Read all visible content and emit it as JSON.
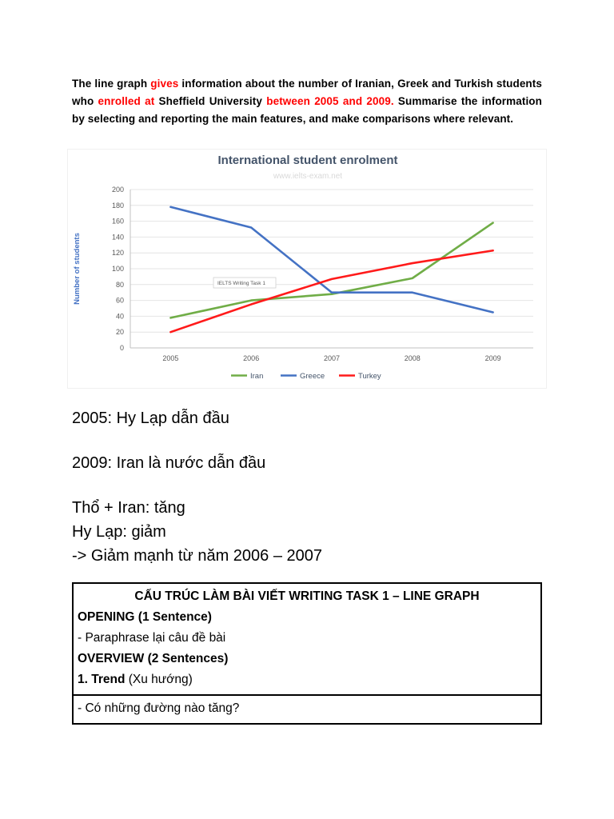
{
  "prompt": {
    "red_color": "#ff0000",
    "segments": [
      {
        "t": "The line graph ",
        "red": false
      },
      {
        "t": "gives",
        "red": true
      },
      {
        "t": " information about the number of Iranian, Greek and Turkish students who ",
        "red": false
      },
      {
        "t": "enrolled at",
        "red": true
      },
      {
        "t": " Sheffield University ",
        "red": false
      },
      {
        "t": "between 2005 and 2009.",
        "red": true
      },
      {
        "t": " Summarise the information by selecting and reporting the main features, and make comparisons where relevant.",
        "red": false
      }
    ]
  },
  "chart_data": {
    "type": "line",
    "title": "International student enrolment",
    "title_color": "#44546a",
    "watermark": "www.ielts-exam.net",
    "annotation": "IELTS Writing Task 1",
    "ylabel": "Number of students",
    "ylabel_color": "#4472c4",
    "categories": [
      "2005",
      "2006",
      "2007",
      "2008",
      "2009"
    ],
    "ylim": [
      0,
      200
    ],
    "ytick_step": 20,
    "grid": true,
    "legend_position": "bottom",
    "legend_text_color": "#44546a",
    "series": [
      {
        "name": "Iran",
        "color": "#70ad47",
        "values": [
          38,
          60,
          68,
          88,
          158
        ]
      },
      {
        "name": "Greece",
        "color": "#4472c4",
        "values": [
          178,
          152,
          70,
          70,
          45
        ]
      },
      {
        "name": "Turkey",
        "color": "#ff1a1a",
        "values": [
          20,
          55,
          87,
          107,
          123
        ]
      }
    ]
  },
  "notes": [
    "2005: Hy Lạp dẫn đầu",
    "2009: Iran là nước dẫn đầu",
    "Thổ + Iran: tăng",
    "Hy Lạp: giảm",
    "-> Giảm mạnh từ năm 2006 – 2007"
  ],
  "structure_box": {
    "title": "CẤU TRÚC LÀM BÀI VIẾT WRITING TASK 1 – LINE GRAPH",
    "rows": [
      {
        "bold": "OPENING (1 Sentence)",
        "rest": ""
      },
      {
        "bold": "",
        "rest": "- Paraphrase lại câu đề bài"
      },
      {
        "bold": "OVERVIEW (2 Sentences)",
        "rest": ""
      },
      {
        "bold": "1. Trend",
        "rest": " (Xu hướng)"
      }
    ],
    "last_row": "- Có những đường nào tăng?"
  }
}
